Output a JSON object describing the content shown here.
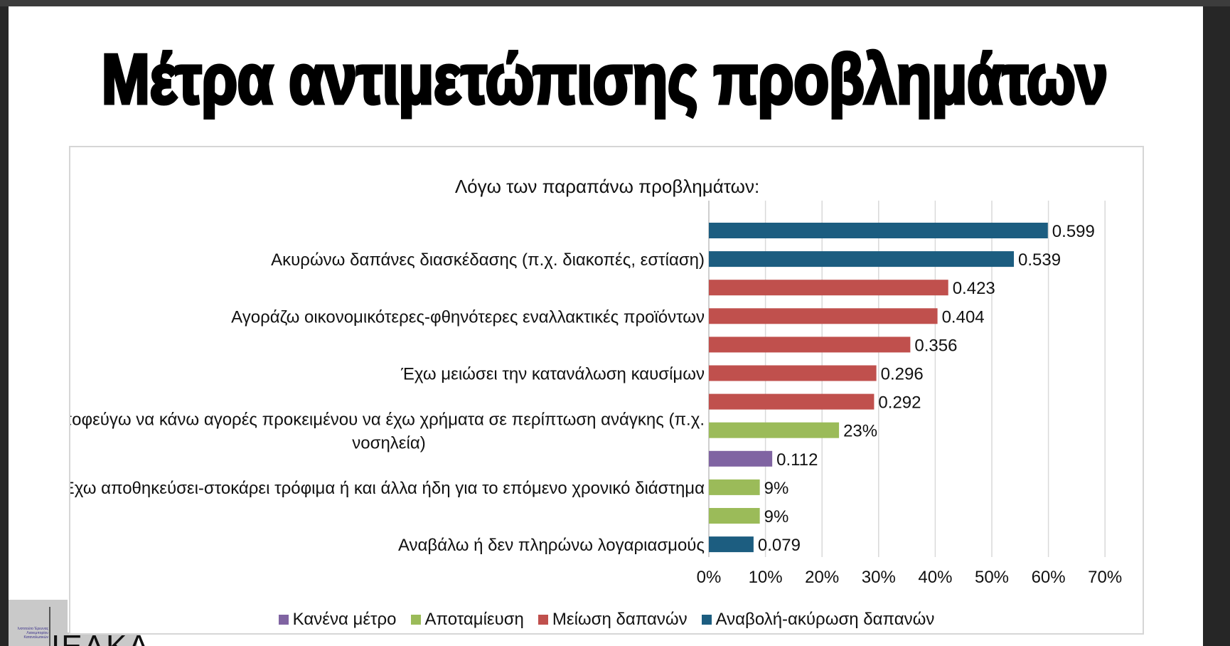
{
  "slide_title": "Μέτρα αντιμετώπισης προβλημάτων",
  "logo": {
    "small_text": "Ινστιτούτο Έρευνας Λιανεμπορίου Καταναλωτικών",
    "big_text": "ΙΕΛΚΑ"
  },
  "chart_data": {
    "type": "bar",
    "orientation": "horizontal",
    "title": "Λόγω των παραπάνω προβλημάτων:",
    "categories": [
      "",
      "Ακυρώνω δαπάνες διασκέδασης (π.χ. διακοπές, εστίαση)",
      "",
      "Αγοράζω οικονομικότερες-φθηνότερες εναλλακτικές προϊόντων",
      "",
      "Έχω μειώσει την κατανάλωση καυσίμων",
      "",
      "Αποφεύγω να κάνω αγορές προκειμένου να έχω χρήματα σε περίπτωση ανάγκης (π.χ.|νοσηλεία)",
      "",
      "Έχω αποθηκεύσει-στοκάρει τρόφιμα ή και άλλα ήδη για το επόμενο χρονικό διάστημα",
      "",
      "Αναβάλω ή δεν πληρώνω λογαριασμούς"
    ],
    "values": [
      0.599,
      0.539,
      0.423,
      0.404,
      0.356,
      0.296,
      0.292,
      0.23,
      0.112,
      0.09,
      0.09,
      0.079
    ],
    "data_labels": [
      "0.599",
      "0.539",
      "0.423",
      "0.404",
      "0.356",
      "0.296",
      "0.292",
      "23%",
      "0.112",
      "9%",
      "9%",
      "0.079"
    ],
    "groups": [
      "postpone",
      "postpone",
      "reduce",
      "reduce",
      "reduce",
      "reduce",
      "reduce",
      "save",
      "none",
      "save",
      "save",
      "postpone"
    ],
    "xlim": [
      0,
      0.7
    ],
    "xticks": [
      "0%",
      "10%",
      "20%",
      "30%",
      "40%",
      "50%",
      "60%",
      "70%"
    ],
    "grid": true,
    "legend_position": "bottom",
    "legend": [
      {
        "key": "none",
        "label": "Κανένα μέτρο",
        "color": "#8064a2"
      },
      {
        "key": "save",
        "label": "Αποταμίευση",
        "color": "#9bbb59"
      },
      {
        "key": "reduce",
        "label": "Μείωση δαπανών",
        "color": "#c0504d"
      },
      {
        "key": "postpone",
        "label": "Αναβολή-ακύρωση δαπανών",
        "color": "#1c5d80"
      }
    ]
  }
}
